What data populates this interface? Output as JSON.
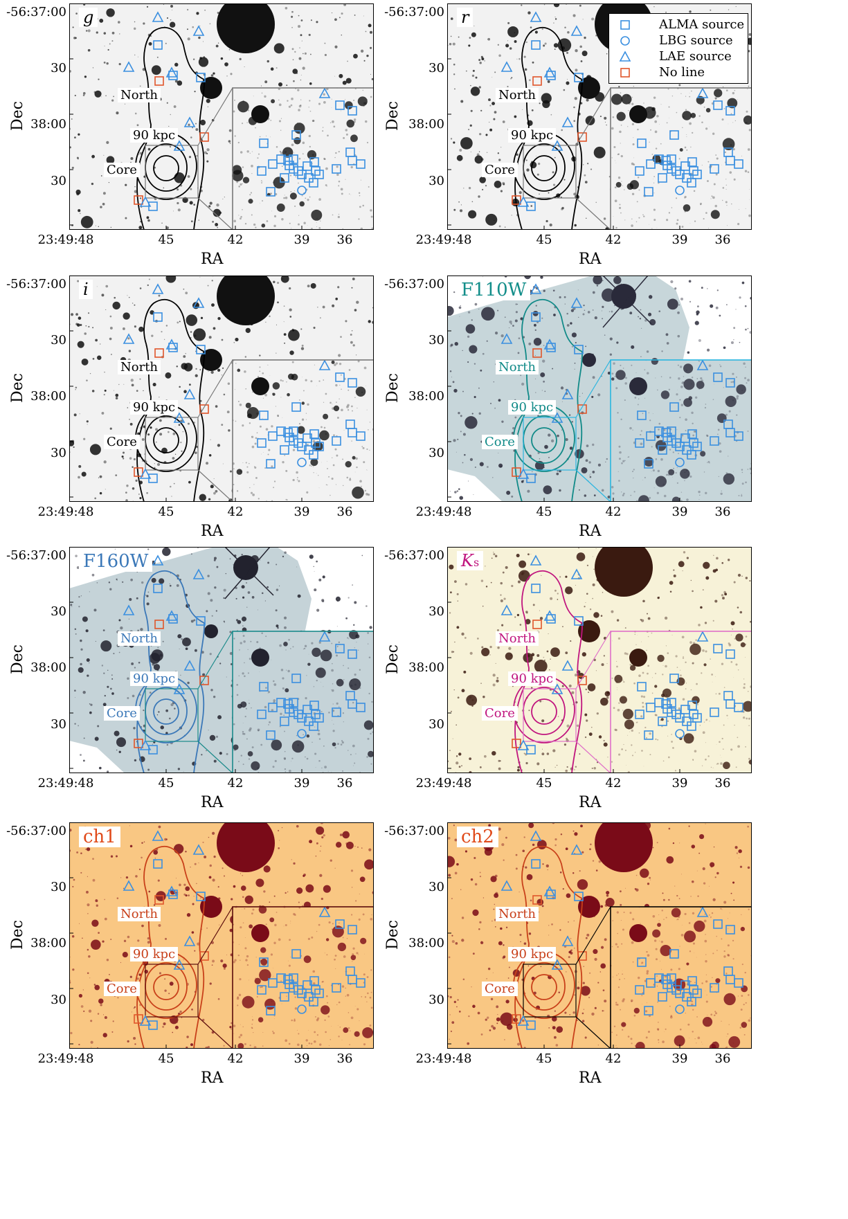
{
  "figure": {
    "axis_labels": {
      "x": "RA",
      "y": "Dec"
    },
    "y_ticks": [
      "-56:37:00",
      "30",
      "38:00",
      "30"
    ],
    "x_ticks": [
      "23:49:48",
      "45",
      "42",
      "39",
      "36"
    ],
    "region_labels": {
      "north": "North",
      "scale": "90 kpc",
      "core": "Core"
    },
    "legend": [
      {
        "label": "ALMA source",
        "marker": "square",
        "color": "#3a8fe0"
      },
      {
        "label": "LBG source",
        "marker": "circle",
        "color": "#3a8fe0"
      },
      {
        "label": "LAE source",
        "marker": "triangle",
        "color": "#3a8fe0"
      },
      {
        "label": "No line",
        "marker": "square",
        "color": "#e0552a"
      }
    ],
    "panels": [
      {
        "label": "g",
        "italic": true,
        "bg": "#f2f2f2",
        "blob": "#111111",
        "contour": "#000000",
        "inset_border": "#777777",
        "label_color": "#000000"
      },
      {
        "label": "r",
        "italic": true,
        "bg": "#f2f2f2",
        "blob": "#111111",
        "contour": "#000000",
        "inset_border": "#777777",
        "label_color": "#000000"
      },
      {
        "label": "i",
        "italic": true,
        "bg": "#f2f2f2",
        "blob": "#111111",
        "contour": "#000000",
        "inset_border": "#777777",
        "label_color": "#000000"
      },
      {
        "label": "F110W",
        "italic": false,
        "bg": "#c7d6da",
        "blob": "#2a2a3a",
        "contour": "#118a88",
        "inset_border": "#29b5e0",
        "label_color": "#138e8a"
      },
      {
        "label": "F160W",
        "italic": false,
        "bg": "#c5d3d8",
        "blob": "#22222e",
        "contour": "#3b78b8",
        "inset_border": "#1a8a8a",
        "label_color": "#3b78b8"
      },
      {
        "label": "Ks",
        "italic": true,
        "bg": "#f7f2d8",
        "blob": "#3a1a10",
        "contour": "#c0157e",
        "inset_border": "#e070c8",
        "label_color": "#c0157e"
      },
      {
        "label": "ch1",
        "italic": false,
        "bg": "#f9c783",
        "blob": "#7a0b18",
        "contour": "#c8401a",
        "inset_border": "#5a0a0a",
        "label_color": "#e04a1a"
      },
      {
        "label": "ch2",
        "italic": false,
        "bg": "#f9c783",
        "blob": "#7a0b18",
        "contour": "#c8401a",
        "inset_border": "#000000",
        "label_color": "#e04a1a"
      }
    ]
  }
}
